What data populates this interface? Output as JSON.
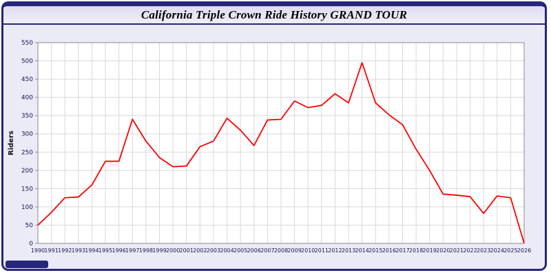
{
  "window": {
    "title": "California Triple Crown Ride History GRAND TOUR"
  },
  "colors": {
    "frame_navy": "#26267a",
    "window_background": "#ebebf7",
    "plot_background": "#ffffff",
    "grid": "#d8d8dc",
    "series_red": "#ff0000",
    "tick_label": "#15154a"
  },
  "chart_data": {
    "type": "line",
    "title": "California Triple Crown Ride History GRAND TOUR",
    "xlabel": "",
    "ylabel": "Riders",
    "ylim": [
      0,
      550
    ],
    "ytick_step": 50,
    "grid": true,
    "legend": "none",
    "line_color": "#ff0000",
    "categories": [
      1990,
      1991,
      1992,
      1993,
      1994,
      1995,
      1996,
      1997,
      1998,
      1999,
      2000,
      2001,
      2002,
      2003,
      2004,
      2005,
      2006,
      2007,
      2008,
      2009,
      2010,
      2011,
      2012,
      2013,
      2014,
      2015,
      2016,
      2017,
      2018,
      2019,
      2020,
      2021,
      2022,
      2023,
      2024,
      2025,
      2026
    ],
    "values": [
      50,
      85,
      125,
      127,
      160,
      225,
      225,
      340,
      280,
      235,
      210,
      212,
      265,
      280,
      343,
      310,
      268,
      338,
      340,
      390,
      372,
      378,
      410,
      385,
      495,
      385,
      352,
      325,
      258,
      200,
      135,
      132,
      128,
      82,
      130,
      125,
      0
    ]
  }
}
